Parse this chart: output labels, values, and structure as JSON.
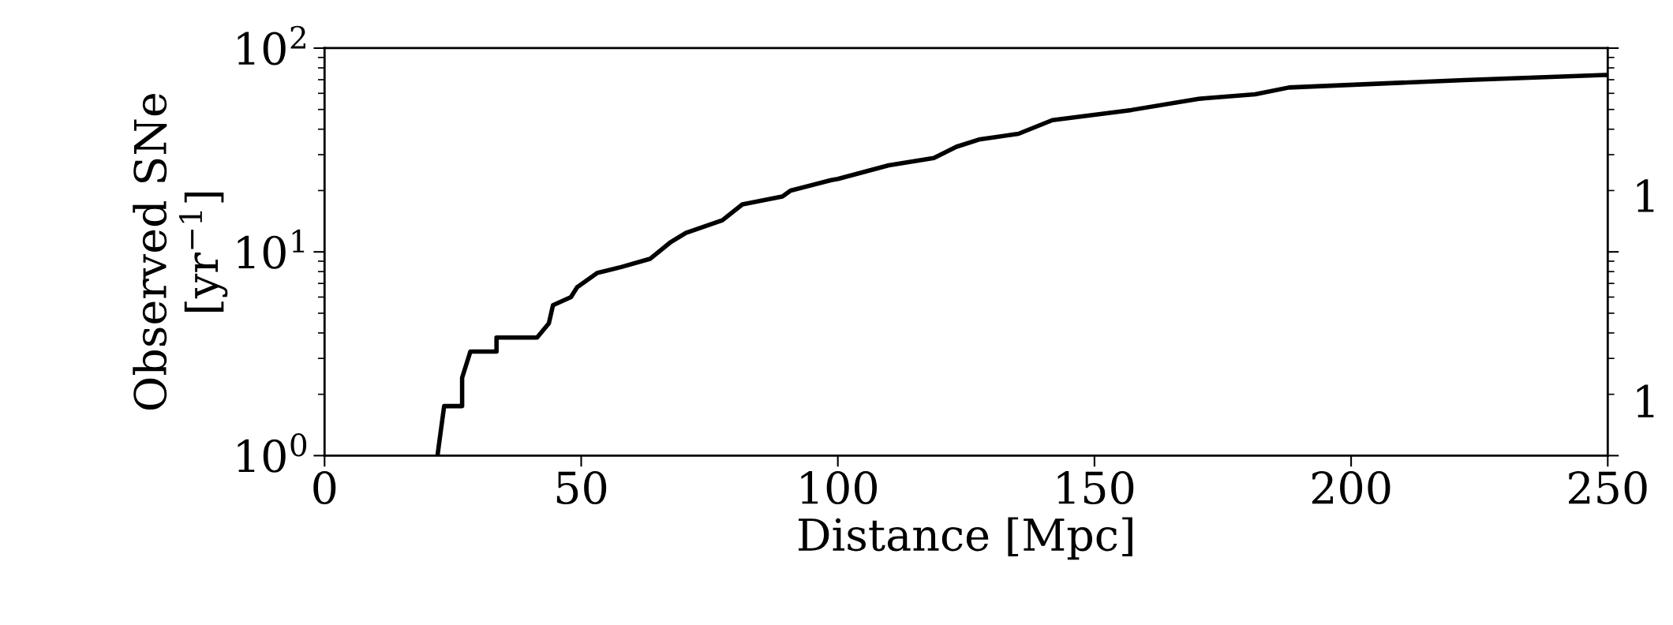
{
  "chart_data": {
    "type": "line",
    "xlabel": "Distance [Mpc]",
    "ylabel": "Observed SNe\n[yr$^{−1}$]",
    "log": "y",
    "grid": false,
    "annotations": [
      "1",
      "1"
    ],
    "marker": "none",
    "line_style": "solid",
    "xlim": [
      0,
      250
    ],
    "xticks": [
      0,
      50,
      100,
      150,
      200,
      250
    ],
    "ylim": [
      1,
      100
    ],
    "yticks": [
      {
        "value": 1,
        "label": "10$^{0}$"
      },
      {
        "value": 10,
        "label": "10$^{1}$"
      },
      {
        "value": 100,
        "label": "10$^{2}$"
      }
    ],
    "series": [
      {
        "color": "#000000",
        "x": [
          22.0,
          22.4,
          23.3,
          26.8,
          26.8,
          28.4,
          33.5,
          33.5,
          41.4,
          43.7,
          44.5,
          48.0,
          49.2,
          53.1,
          57.8,
          63.4,
          67.3,
          70.4,
          77.5,
          81.4,
          89.2,
          90.8,
          98.7,
          100.0,
          109.9,
          118.7,
          123.1,
          127.5,
          135.2,
          141.8,
          157.2,
          170.3,
          181.3,
          187.9,
          222,
          249.5
        ],
        "values": [
          1,
          1.19,
          1.75,
          1.75,
          2.41,
          3.24,
          3.24,
          3.8,
          3.8,
          4.46,
          5.47,
          6.0,
          6.71,
          7.88,
          8.43,
          9.24,
          11.1,
          12.4,
          14.3,
          17.1,
          18.7,
          20.0,
          22.5,
          22.8,
          26.6,
          28.9,
          32.8,
          35.6,
          38.0,
          44.3,
          49.7,
          56.4,
          59.3,
          64.1,
          69.7,
          73.8
        ]
      }
    ]
  }
}
